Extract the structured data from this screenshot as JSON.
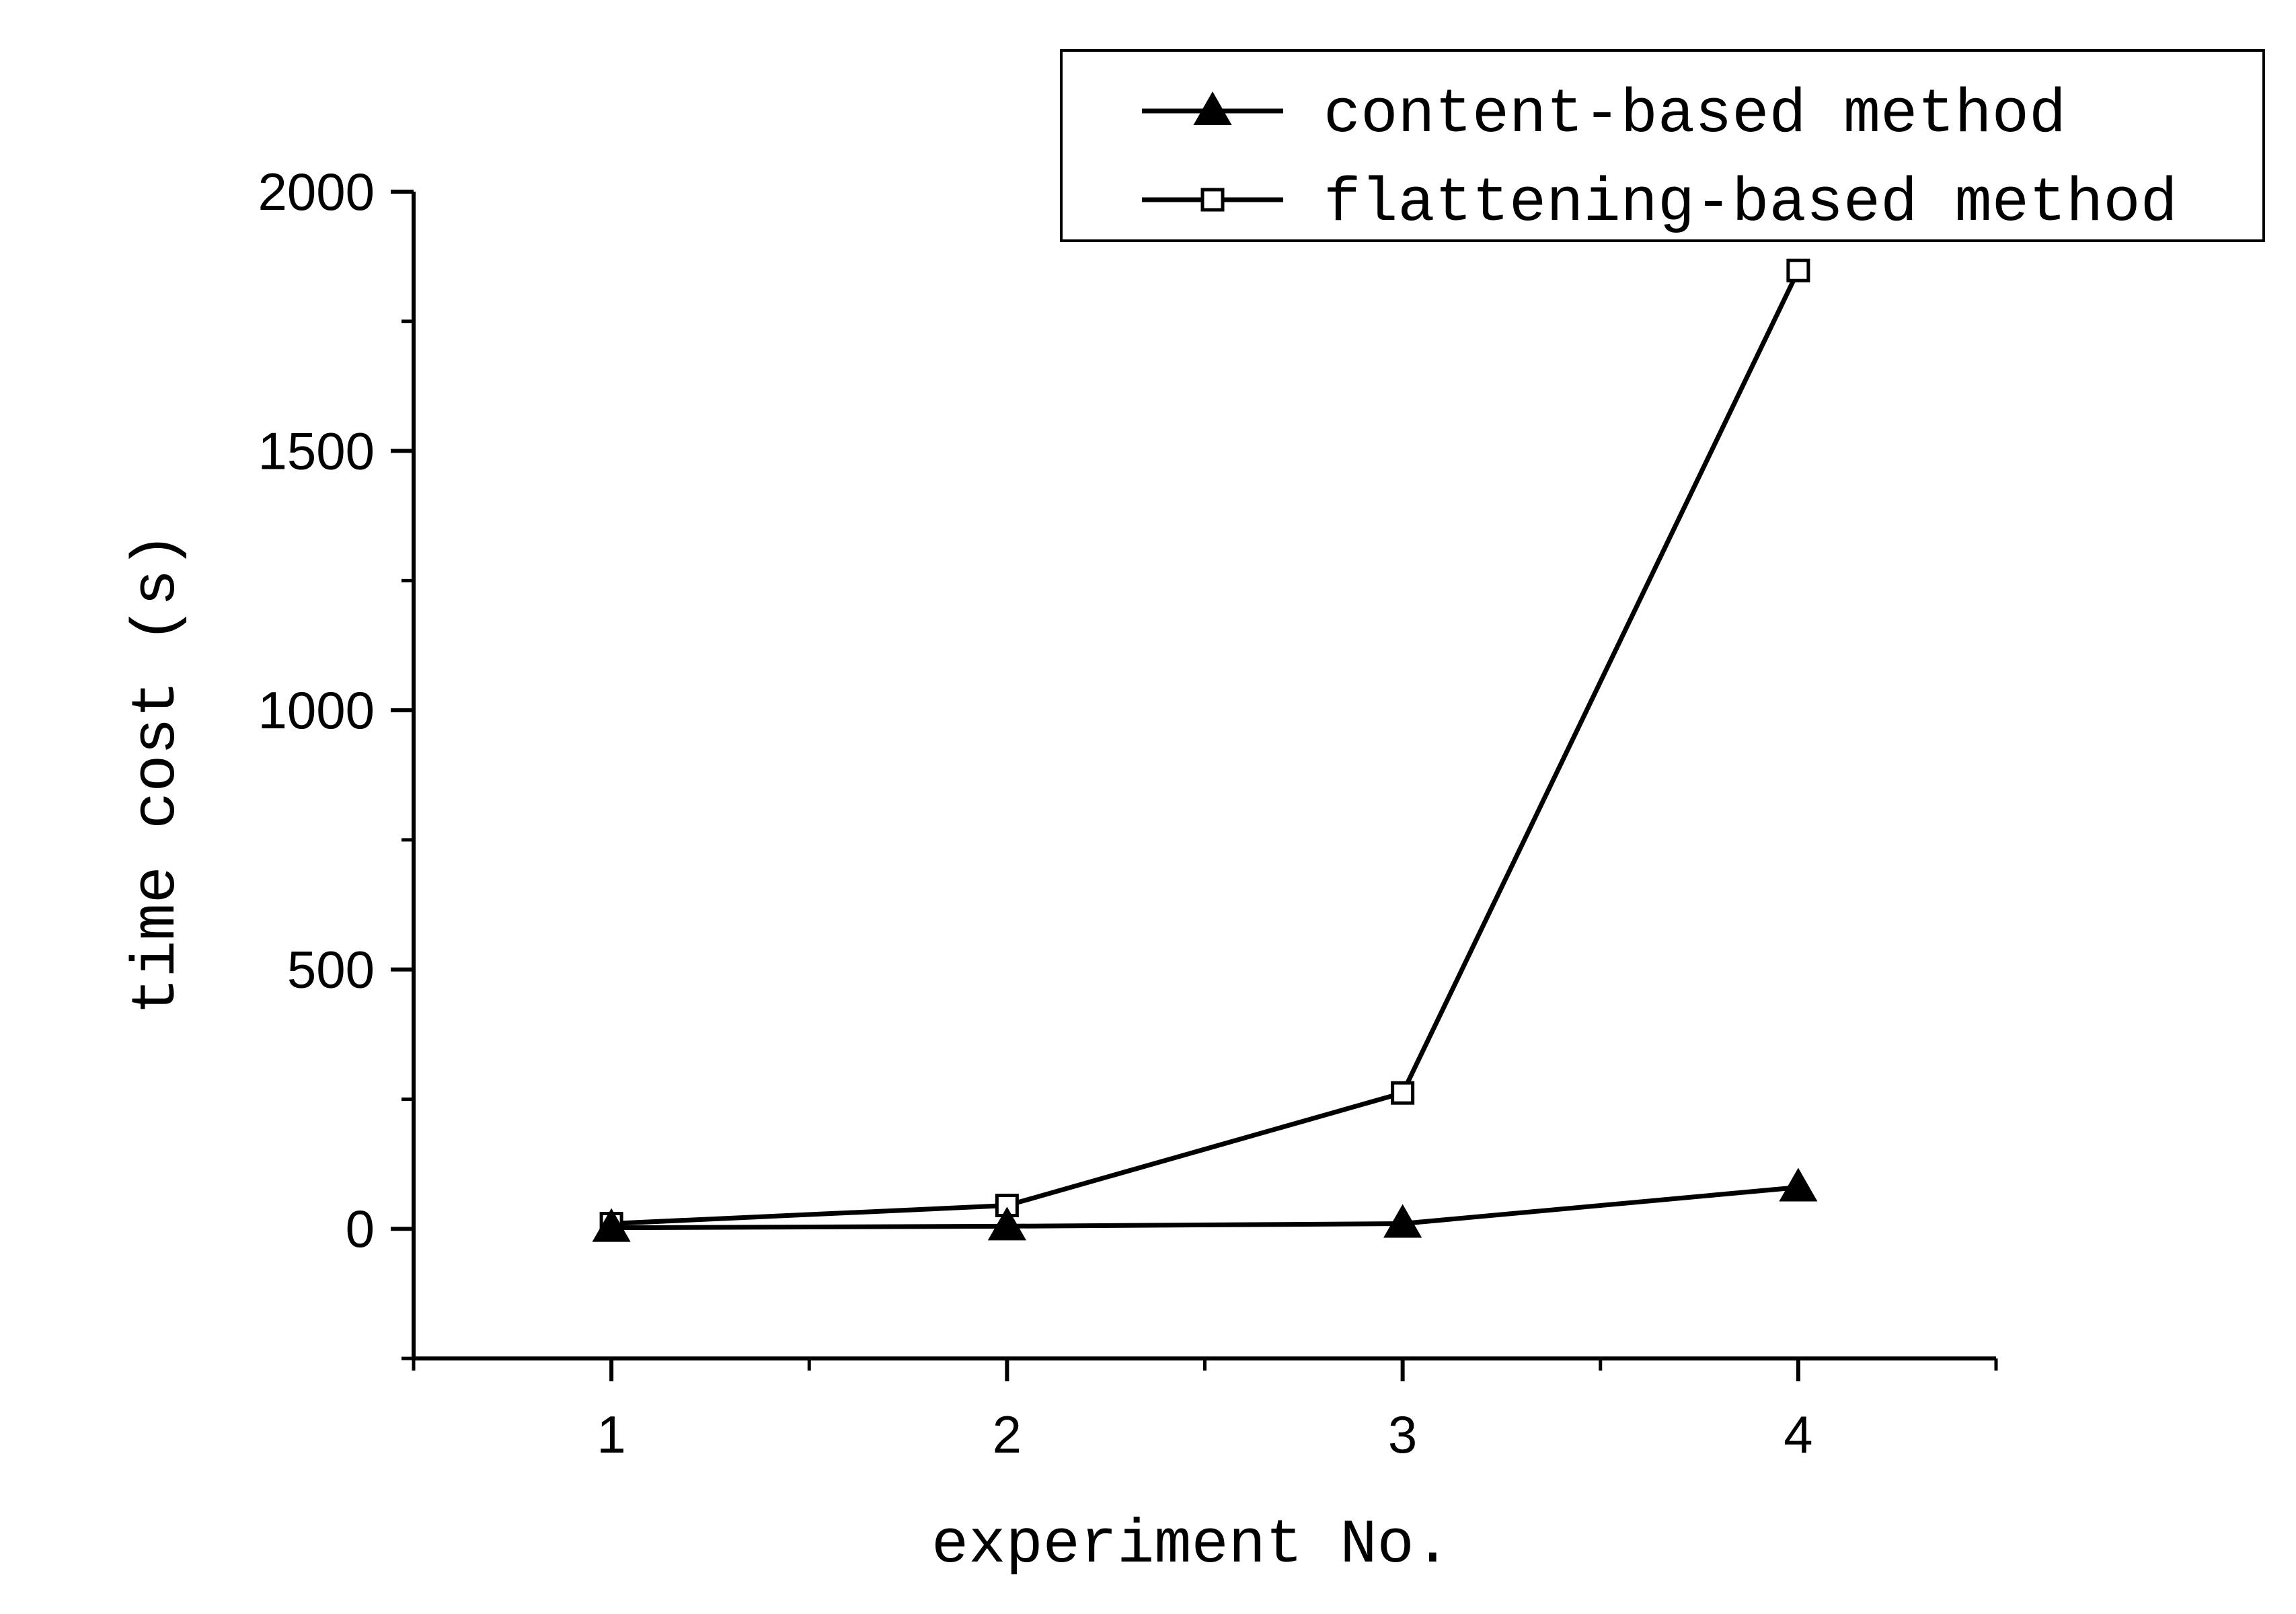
{
  "chart_data": {
    "type": "line",
    "title": "",
    "xlabel": "experiment No.",
    "ylabel": "time cost (s)",
    "x": [
      1,
      2,
      3,
      4
    ],
    "xlim": [
      0.5,
      4.5
    ],
    "ylim": [
      -250,
      2000
    ],
    "xticks": [
      1,
      2,
      3,
      4
    ],
    "yticks": [
      0,
      500,
      1000,
      1500,
      2000
    ],
    "grid": false,
    "legend_position": "top-right",
    "series": [
      {
        "name": "content-based method",
        "marker": "filled-triangle",
        "color": "#000000",
        "values": [
          2,
          5,
          10,
          80
        ]
      },
      {
        "name": "flattening-based method",
        "marker": "open-square",
        "color": "#000000",
        "values": [
          10,
          45,
          262,
          1848
        ]
      }
    ]
  }
}
